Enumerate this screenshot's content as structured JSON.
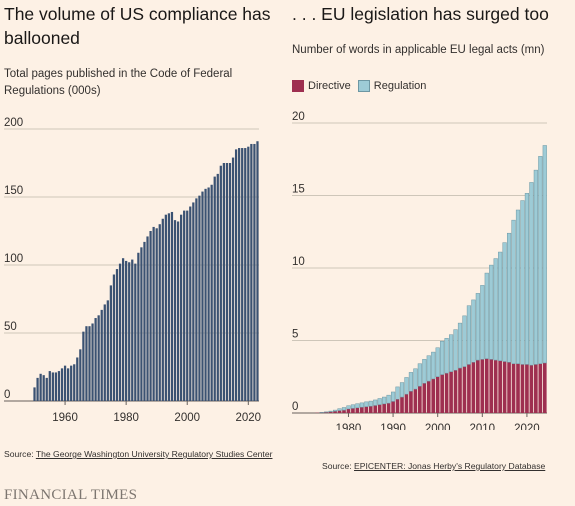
{
  "left": {
    "title": "The volume of US compliance has ballooned",
    "subtitle": "Total pages published in the Code of Federal Regulations (000s)",
    "source_prefix": "Source: ",
    "source_link": "The George Washington University Regulatory Studies Center"
  },
  "right": {
    "title": ". . . EU legislation has surged too",
    "subtitle": "Number of words in applicable EU legal acts (mn)",
    "legend": {
      "directive": "Directive",
      "regulation": "Regulation"
    },
    "source_prefix": "Source: ",
    "source_link": "EPICENTER: Jonas Herby's Regulatory Database"
  },
  "footer": {
    "brand": "FINANCIAL TIMES"
  },
  "colors": {
    "us_bar": "#3b5272",
    "directive": "#9e2f50",
    "regulation": "#9dcbd6",
    "grid": "#cec6b9",
    "background": "#fdf1e5"
  },
  "chart_data": [
    {
      "type": "bar",
      "ylim": [
        0,
        200
      ],
      "yticks": [
        0,
        50,
        100,
        150,
        200
      ],
      "xticks": [
        1960,
        1980,
        2000,
        2020
      ],
      "x": [
        1950,
        1951,
        1952,
        1953,
        1954,
        1955,
        1956,
        1957,
        1958,
        1959,
        1960,
        1961,
        1962,
        1963,
        1964,
        1965,
        1966,
        1967,
        1968,
        1969,
        1970,
        1971,
        1972,
        1973,
        1974,
        1975,
        1976,
        1977,
        1978,
        1979,
        1980,
        1981,
        1982,
        1983,
        1984,
        1985,
        1986,
        1987,
        1988,
        1989,
        1990,
        1991,
        1992,
        1993,
        1994,
        1995,
        1996,
        1997,
        1998,
        1999,
        2000,
        2001,
        2002,
        2003,
        2004,
        2005,
        2006,
        2007,
        2008,
        2009,
        2010,
        2011,
        2012,
        2013,
        2014,
        2015,
        2016,
        2017,
        2018,
        2019,
        2020,
        2021,
        2022,
        2023
      ],
      "values": [
        10,
        17,
        20,
        19,
        17,
        22,
        21,
        21,
        22,
        24,
        26,
        24,
        26,
        27,
        32,
        38,
        51,
        55,
        55,
        57,
        61,
        63,
        67,
        71,
        74,
        85,
        93,
        97,
        101,
        105,
        103,
        102,
        104,
        101,
        109,
        113,
        117,
        121,
        125,
        128,
        127,
        130,
        134,
        137,
        138,
        139,
        133,
        132,
        137,
        140,
        140,
        143,
        146,
        149,
        151,
        154,
        156,
        157,
        159,
        165,
        167,
        173,
        175,
        175,
        175,
        179,
        185,
        186,
        186,
        186,
        187,
        189,
        189,
        191
      ]
    },
    {
      "type": "bar",
      "stacked": true,
      "ylim": [
        0,
        20
      ],
      "yticks": [
        0,
        5,
        10,
        15,
        20
      ],
      "xticks": [
        1980,
        1990,
        2000,
        2010,
        2020
      ],
      "x": [
        1973,
        1974,
        1975,
        1976,
        1977,
        1978,
        1979,
        1980,
        1981,
        1982,
        1983,
        1984,
        1985,
        1986,
        1987,
        1988,
        1989,
        1990,
        1991,
        1992,
        1993,
        1994,
        1995,
        1996,
        1997,
        1998,
        1999,
        2000,
        2001,
        2002,
        2003,
        2004,
        2005,
        2006,
        2007,
        2008,
        2009,
        2010,
        2011,
        2012,
        2013,
        2014,
        2015,
        2016,
        2017,
        2018,
        2019,
        2020,
        2021,
        2022,
        2023,
        2024
      ],
      "series": [
        {
          "name": "Directive",
          "values": [
            0.02,
            0.03,
            0.05,
            0.08,
            0.12,
            0.17,
            0.2,
            0.28,
            0.32,
            0.36,
            0.4,
            0.44,
            0.47,
            0.52,
            0.58,
            0.63,
            0.68,
            0.8,
            0.95,
            1.1,
            1.3,
            1.5,
            1.65,
            1.85,
            2.05,
            2.2,
            2.35,
            2.5,
            2.65,
            2.75,
            2.85,
            2.95,
            3.1,
            3.2,
            3.35,
            3.5,
            3.65,
            3.7,
            3.75,
            3.7,
            3.65,
            3.6,
            3.55,
            3.5,
            3.4,
            3.4,
            3.35,
            3.35,
            3.3,
            3.35,
            3.4,
            3.45
          ]
        },
        {
          "name": "Regulation",
          "values": [
            0.0,
            0.02,
            0.03,
            0.05,
            0.08,
            0.13,
            0.18,
            0.22,
            0.25,
            0.28,
            0.3,
            0.33,
            0.35,
            0.38,
            0.42,
            0.47,
            0.55,
            0.65,
            0.85,
            1.0,
            1.15,
            1.3,
            1.4,
            1.55,
            1.65,
            1.75,
            1.85,
            2.0,
            2.3,
            2.4,
            2.55,
            2.8,
            3.1,
            3.5,
            4.05,
            4.3,
            4.6,
            5.1,
            5.9,
            6.5,
            7.0,
            7.5,
            8.2,
            8.9,
            9.9,
            10.6,
            11.3,
            11.8,
            12.6,
            13.4,
            14.3,
            15.0
          ]
        }
      ]
    }
  ]
}
